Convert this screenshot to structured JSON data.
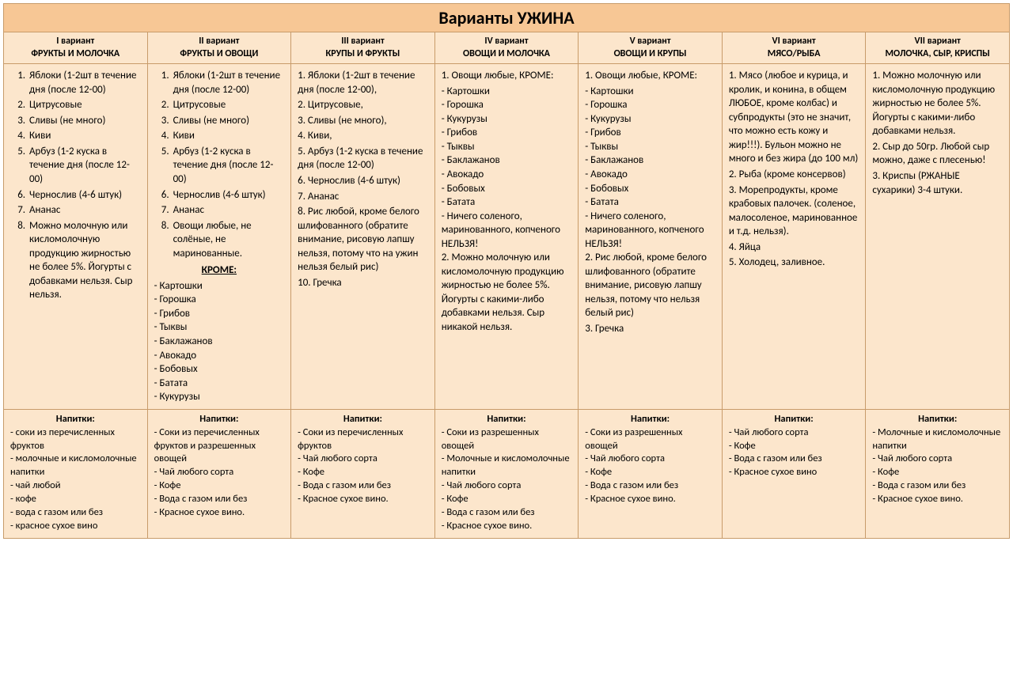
{
  "title": "Варианты УЖИНА",
  "columns": [
    {
      "variant": "I  вариант",
      "name": "ФРУКТЫ И МОЛОЧКА"
    },
    {
      "variant": "II вариант",
      "name": "ФРУКТЫ И ОВОЩИ"
    },
    {
      "variant": "III вариант",
      "name": "КРУПЫ И ФРУКТЫ"
    },
    {
      "variant": "IV вариант",
      "name": "ОВОЩИ И МОЛОЧКА"
    },
    {
      "variant": "V вариант",
      "name": "ОВОЩИ И КРУПЫ"
    },
    {
      "variant": "VI вариант",
      "name": "МЯСО/РЫБА"
    },
    {
      "variant": "VII вариант",
      "name": "МОЛОЧКА, СЫР, КРИСПЫ"
    }
  ],
  "content": {
    "col1": {
      "list": [
        "Яблоки  (1-2шт в течение дня (после 12-00)",
        "Цитрусовые",
        "Сливы (не много)",
        "Киви",
        "Арбуз  (1-2 куска в течение дня (после 12-00)",
        "Чернослив (4-6 штук)",
        "Ананас",
        "Можно молочную или кисломолочную продукцию жирностью не более 5%. Йогурты с добавками нельзя. Сыр нельзя."
      ]
    },
    "col2": {
      "list": [
        "Яблоки  (1-2шт в течение дня (после 12-00)",
        "Цитрусовые",
        "Сливы (не много)",
        "Киви",
        "Арбуз  (1-2 куска в течение дня (после 12-00)",
        "Чернослив (4-6 штук)",
        "Ананас",
        "Овощи любые, не солёные, не маринованные."
      ],
      "krome_label": "КРОМЕ:",
      "exclude": [
        "Картошки",
        "Горошка",
        "Грибов",
        "Тыквы",
        "Баклажанов",
        "Авокадо",
        "Бобовых",
        "Батата",
        "Кукурузы"
      ]
    },
    "col3": {
      "lines": [
        "1. Яблоки (1-2шт в течение дня (после 12-00),",
        "2. Цитрусовые,",
        "3. Сливы (не много),",
        "4. Киви,",
        "5. Арбуз (1-2 куска в течение дня (после 12-00)",
        "6. Чернослив (4-6 штук)",
        "7. Ананас",
        "8. Рис любой, кроме белого шлифованного (обратите внимание, рисовую лапшу нельзя, потому что на ужин нельзя белый рис)",
        "10. Гречка"
      ]
    },
    "col4": {
      "intro": "1. Овощи любые, КРОМЕ:",
      "exclude": [
        "Картошки",
        "Горошка",
        "Кукурузы",
        "Грибов",
        "Тыквы",
        "Баклажанов",
        "Авокадо",
        "Бобовых",
        "Батата",
        "Ничего соленого, маринованного, копченого НЕЛЬЗЯ!"
      ],
      "p2": "2. Можно молочную или кисломолочную продукцию жирностью не более 5%. Йогурты с какими-либо добавками нельзя. Сыр никакой нельзя."
    },
    "col5": {
      "intro": "1. Овощи любые, КРОМЕ:",
      "exclude": [
        "Картошки",
        "Горошка",
        "Кукурузы",
        "Грибов",
        "Тыквы",
        "Баклажанов",
        "Авокадо",
        "Бобовых",
        "Батата",
        "Ничего соленого, маринованного, копченого НЕЛЬЗЯ!"
      ],
      "p2": "2. Рис любой, кроме белого шлифованного (обратите внимание, рисовую лапшу нельзя, потому что нельзя белый рис)",
      "p3": "3. Гречка"
    },
    "col6": {
      "lines": [
        "1. Мясо (любое и курица, и кролик, и конина, в общем ЛЮБОЕ, кроме колбас) и субпродукты (это не значит, что можно есть кожу и жир!!!). Бульон можно не много и без жира (до 100 мл)",
        "2. Рыба (кроме консервов)",
        "3. Морепродукты, кроме крабовых палочек. (соленое, малосоленое, маринованное и т.д. нельзя).",
        "4. Яйца",
        "5. Холодец, заливное."
      ]
    },
    "col7": {
      "lines": [
        "1. Можно молочную или кисломолочную продукцию жирностью не более 5%. Йогурты с какими-либо добавками нельзя.",
        "2. Сыр до 50гр. Любой сыр можно, даже с плесенью!",
        "3. Криспы (РЖАНЫЕ сухарики) 3-4 штуки."
      ]
    }
  },
  "drinks_label": "Напитки",
  "drinks": {
    "col1": [
      "соки из перечисленных фруктов",
      "молочные и кисломолочные напитки",
      "чай любой",
      "кофе",
      "вода с газом или без",
      "красное сухое вино"
    ],
    "col2": [
      "Соки из перечисленных фруктов и разрешенных овощей",
      "Чай любого сорта",
      "Кофе",
      "Вода с газом или без",
      "Красное сухое вино."
    ],
    "col3": [
      "Соки из перечисленных фруктов",
      "Чай любого сорта",
      "Кофе",
      "Вода с газом или без",
      "Красное сухое вино."
    ],
    "col4": [
      "Соки из разрешенных овощей",
      "Молочные и кисломолочные напитки",
      "Чай любого сорта",
      "Кофе",
      "Вода с газом или без",
      "Красное сухое вино."
    ],
    "col5": [
      "Соки из разрешенных овощей",
      "Чай любого сорта",
      "Кофе",
      "Вода с газом или без",
      "Красное сухое вино."
    ],
    "col6": [
      "Чай любого сорта",
      "Кофе",
      "Вода с газом или без",
      "Красное сухое вино"
    ],
    "col7": [
      "Молочные и кисломолочные напитки",
      "Чай любого сорта",
      "Кофе",
      "Вода с газом или без",
      "Красное сухое вино."
    ]
  },
  "colors": {
    "title_bg": "#f7c795",
    "cell_bg": "#fce6cc",
    "border": "#c89b6a"
  }
}
